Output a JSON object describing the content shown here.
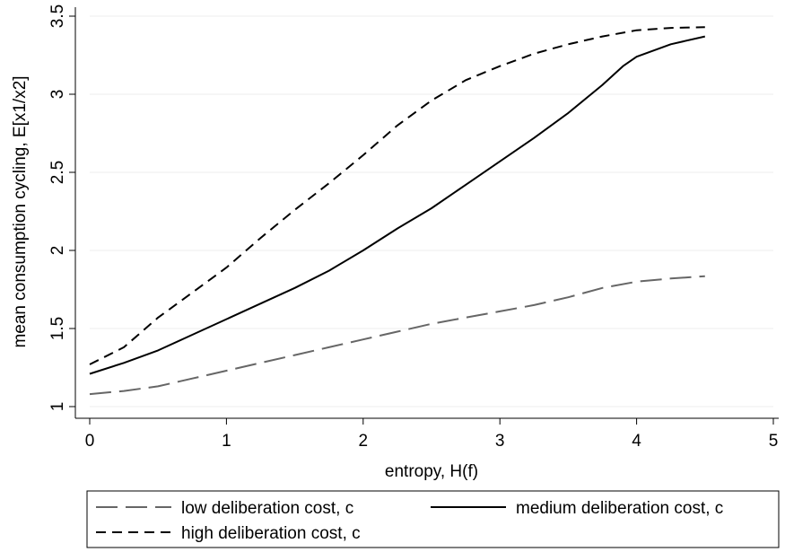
{
  "chart_data": {
    "type": "line",
    "xlabel": "entropy, H(f)",
    "ylabel": "mean consumption cycling, E[x1/x2]",
    "xlim": [
      0,
      5
    ],
    "ylim": [
      1,
      3.5
    ],
    "x_ticks": [
      0,
      1,
      2,
      3,
      4,
      5
    ],
    "y_ticks": [
      1,
      1.5,
      2,
      2.5,
      3,
      3.5
    ],
    "x_tick_labels": [
      "0",
      "1",
      "2",
      "3",
      "4",
      "5"
    ],
    "y_tick_labels": [
      "1",
      "1.5",
      "2",
      "2.5",
      "3",
      "3.5"
    ],
    "grid": "horizontal",
    "legend_position": "bottom",
    "series": [
      {
        "name": "low deliberation cost, c",
        "style": "long-dash",
        "color": "#666666",
        "x": [
          0,
          0.25,
          0.5,
          0.75,
          1,
          1.25,
          1.5,
          1.75,
          2,
          2.25,
          2.5,
          2.75,
          3,
          3.25,
          3.5,
          3.75,
          4,
          4.25,
          4.5
        ],
        "y": [
          1.08,
          1.1,
          1.13,
          1.18,
          1.23,
          1.28,
          1.33,
          1.38,
          1.43,
          1.48,
          1.53,
          1.57,
          1.61,
          1.65,
          1.7,
          1.76,
          1.8,
          1.82,
          1.835
        ]
      },
      {
        "name": "medium deliberation cost, c",
        "style": "solid",
        "color": "#000000",
        "x": [
          0,
          0.25,
          0.5,
          0.75,
          1,
          1.25,
          1.5,
          1.75,
          2,
          2.25,
          2.5,
          2.75,
          3,
          3.25,
          3.5,
          3.75,
          3.9,
          4,
          4.25,
          4.5
        ],
        "y": [
          1.21,
          1.28,
          1.36,
          1.46,
          1.56,
          1.66,
          1.76,
          1.87,
          2.0,
          2.14,
          2.27,
          2.42,
          2.57,
          2.72,
          2.88,
          3.06,
          3.18,
          3.24,
          3.32,
          3.37
        ]
      },
      {
        "name": "high deliberation cost, c",
        "style": "short-dash",
        "color": "#000000",
        "x": [
          0,
          0.25,
          0.5,
          0.75,
          1,
          1.25,
          1.5,
          1.75,
          2,
          2.25,
          2.5,
          2.75,
          3,
          3.25,
          3.5,
          3.75,
          4,
          4.25,
          4.5
        ],
        "y": [
          1.27,
          1.38,
          1.57,
          1.73,
          1.89,
          2.08,
          2.26,
          2.43,
          2.61,
          2.8,
          2.96,
          3.09,
          3.18,
          3.26,
          3.32,
          3.37,
          3.41,
          3.425,
          3.43
        ]
      }
    ]
  }
}
